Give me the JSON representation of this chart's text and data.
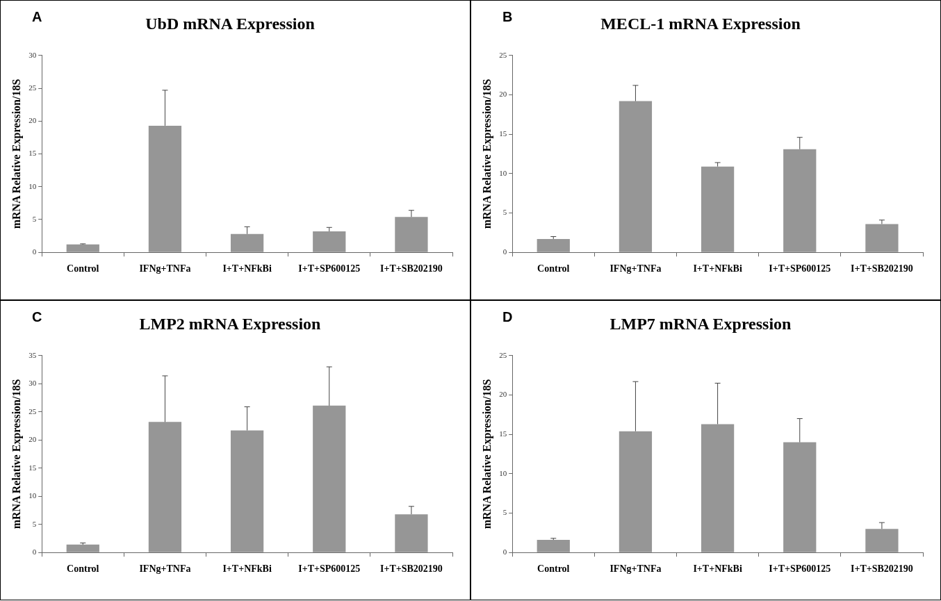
{
  "chart_data": [
    {
      "type": "bar",
      "title": "UbD mRNA Expression",
      "annotations": [
        "A"
      ],
      "ylabel": "mRNA Relative Expression/18S",
      "categories": [
        "Control",
        "IFNg+TNFa",
        "I+T+NFkBi",
        "I+T+SP600125",
        "I+T+SB202190"
      ],
      "color": "#969696",
      "values": [
        1.2,
        19.3,
        2.8,
        3.2,
        5.4
      ],
      "errors": [
        [
          1.2,
          1.3
        ],
        [
          19.3,
          24.7
        ],
        [
          2.8,
          3.9
        ],
        [
          3.2,
          3.8
        ],
        [
          5.4,
          6.4
        ]
      ],
      "ylim": [
        0,
        30
      ],
      "yticks": [
        0,
        5,
        10,
        15,
        20,
        25,
        30
      ]
    },
    {
      "type": "bar",
      "title": "MECL-1 mRNA Expression",
      "annotations": [
        "B"
      ],
      "ylabel": "mRNA Relative Expression/18S",
      "categories": [
        "Control",
        "IFNg+TNFa",
        "I+T+NFkBi",
        "I+T+SP600125",
        "I+T+SB202190"
      ],
      "color": "#969696",
      "values": [
        1.7,
        19.2,
        10.9,
        13.1,
        3.6
      ],
      "errors": [
        [
          1.7,
          2.0
        ],
        [
          19.2,
          21.2
        ],
        [
          10.9,
          11.4
        ],
        [
          13.1,
          14.6
        ],
        [
          3.6,
          4.1
        ]
      ],
      "ylim": [
        0,
        25
      ],
      "yticks": [
        0,
        5,
        10,
        15,
        20,
        25
      ]
    },
    {
      "type": "bar",
      "title": "LMP2 mRNA Expression",
      "annotations": [
        "C"
      ],
      "ylabel": "mRNA Relative Expression/18S",
      "categories": [
        "Control",
        "IFNg+TNFa",
        "I+T+NFkBi",
        "I+T+SP600125",
        "I+T+SB202190"
      ],
      "color": "#969696",
      "values": [
        1.4,
        23.2,
        21.7,
        26.1,
        6.8
      ],
      "errors": [
        [
          1.4,
          1.7
        ],
        [
          23.2,
          31.4
        ],
        [
          21.7,
          25.9
        ],
        [
          26.1,
          33.0
        ],
        [
          6.8,
          8.2
        ]
      ],
      "ylim": [
        0,
        35
      ],
      "yticks": [
        0,
        5,
        10,
        15,
        20,
        25,
        30,
        35
      ]
    },
    {
      "type": "bar",
      "title": "LMP7 mRNA Expression",
      "annotations": [
        "D"
      ],
      "ylabel": "mRNA Relative Expression/18S",
      "categories": [
        "Control",
        "IFNg+TNFa",
        "I+T+NFkBi",
        "I+T+SP600125",
        "I+T+SB202190"
      ],
      "color": "#969696",
      "values": [
        1.6,
        15.4,
        16.3,
        14.0,
        3.0
      ],
      "errors": [
        [
          1.6,
          1.8
        ],
        [
          15.4,
          21.7
        ],
        [
          16.3,
          21.5
        ],
        [
          14.0,
          17.0
        ],
        [
          3.0,
          3.8
        ]
      ],
      "ylim": [
        0,
        25
      ],
      "yticks": [
        0,
        5,
        10,
        15,
        20,
        25
      ]
    }
  ]
}
